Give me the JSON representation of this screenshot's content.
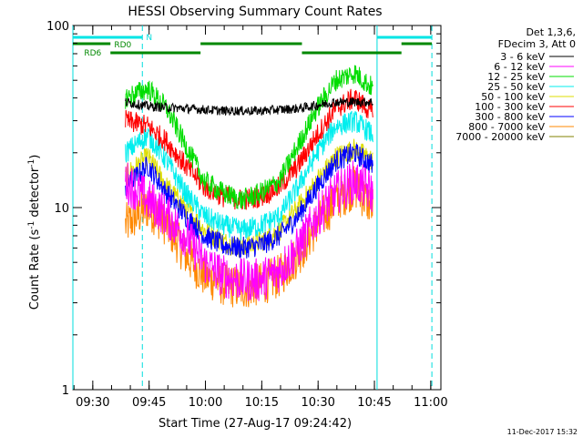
{
  "chart_data": {
    "type": "line",
    "title": "HESSI Observing Summary Count Rates",
    "xlabel": "Start Time (27-Aug-17 09:24:42)",
    "ylabel": "Count Rate (s⁻¹ detector⁻¹)",
    "ylabel_main": "Count Rate (s",
    "ylabel_sup1": "-1",
    "ylabel_mid": " detector",
    "ylabel_sup2": "-1",
    "ylabel_end": ")",
    "y_scale": "log",
    "ylim": [
      1,
      100
    ],
    "xlim_minutes": [
      0,
      98
    ],
    "x_ticks": [
      {
        "label": "09:30",
        "t": 5.3
      },
      {
        "label": "09:45",
        "t": 20.3
      },
      {
        "label": "10:00",
        "t": 35.3
      },
      {
        "label": "10:15",
        "t": 50.3
      },
      {
        "label": "10:30",
        "t": 65.3
      },
      {
        "label": "10:45",
        "t": 80.3
      },
      {
        "label": "11:00",
        "t": 95.3
      }
    ],
    "y_ticks": [
      {
        "label": "1",
        "v": 1
      },
      {
        "label": "10",
        "v": 10
      },
      {
        "label": "100",
        "v": 100
      }
    ],
    "legend_header": [
      "Det 1,3,6,",
      "FDecim 3, Att 0"
    ],
    "legend_position": "right",
    "series": [
      {
        "name": "3 - 6 keV",
        "color": "#000000",
        "t": [
          14,
          20,
          30,
          40,
          50,
          60,
          70,
          75,
          80
        ],
        "values": [
          38,
          36,
          35,
          34,
          34,
          35,
          38,
          38,
          38
        ]
      },
      {
        "name": "6 - 12 keV",
        "color": "#ff00ff",
        "t": [
          14,
          20,
          25,
          30,
          35,
          40,
          45,
          50,
          55,
          60,
          65,
          70,
          75,
          80
        ],
        "values": [
          14,
          11,
          9,
          7,
          5,
          4.2,
          4,
          4,
          4.5,
          6,
          9,
          12,
          14,
          12
        ]
      },
      {
        "name": "12 - 25 keV",
        "color": "#00dd00",
        "t": [
          14,
          20,
          25,
          30,
          35,
          40,
          45,
          50,
          55,
          60,
          65,
          70,
          75,
          80
        ],
        "values": [
          40,
          45,
          35,
          22,
          14,
          12,
          11,
          12,
          14,
          22,
          35,
          50,
          55,
          45
        ]
      },
      {
        "name": "25 - 50 keV",
        "color": "#00eeee",
        "t": [
          14,
          20,
          25,
          30,
          35,
          40,
          45,
          50,
          55,
          60,
          65,
          70,
          75,
          80
        ],
        "values": [
          20,
          25,
          18,
          12,
          9,
          8,
          7.5,
          8,
          9,
          13,
          20,
          28,
          30,
          25
        ]
      },
      {
        "name": "50 - 100 keV",
        "color": "#dddd00",
        "t": [
          14,
          20,
          25,
          30,
          35,
          40,
          45,
          50,
          55,
          60,
          65,
          70,
          75,
          80
        ],
        "values": [
          15,
          19,
          13,
          10,
          7.5,
          6.5,
          6,
          6.5,
          7.5,
          10,
          14,
          19,
          21,
          18
        ]
      },
      {
        "name": "100 - 300 keV",
        "color": "#ff0000",
        "t": [
          14,
          20,
          25,
          30,
          35,
          40,
          45,
          50,
          55,
          60,
          65,
          70,
          75,
          80
        ],
        "values": [
          30,
          28,
          23,
          17,
          13,
          11.5,
          11,
          11.5,
          13,
          17,
          25,
          35,
          40,
          33
        ]
      },
      {
        "name": "300 - 800 keV",
        "color": "#0000ff",
        "t": [
          14,
          20,
          25,
          30,
          35,
          40,
          45,
          50,
          55,
          60,
          65,
          70,
          75,
          80
        ],
        "values": [
          13,
          17,
          12,
          9,
          7,
          6.2,
          6,
          6.2,
          7,
          9,
          13,
          18,
          20,
          17
        ]
      },
      {
        "name": "800 - 7000 keV",
        "color": "#ff8800",
        "t": [
          14,
          20,
          25,
          30,
          35,
          40,
          45,
          50,
          55,
          60,
          65,
          70,
          75,
          80
        ],
        "values": [
          8,
          10,
          8,
          5.5,
          4.2,
          3.8,
          3.6,
          3.8,
          4.2,
          5.5,
          8,
          11,
          13,
          10
        ]
      },
      {
        "name": "7000 - 20000 keV",
        "color": "#808000",
        "t": [],
        "values": []
      }
    ],
    "cyan_vertical_lines_minutes": [
      0,
      81
    ],
    "cyan_dashed_vertical_lines_minutes": [
      18.5,
      95.6
    ],
    "annotations": [
      {
        "text": "N",
        "color": "#00dddd"
      },
      {
        "text": "RD0",
        "color": "#008800"
      },
      {
        "text": "RD6",
        "color": "#008800"
      }
    ],
    "footer_date": "11-Dec-2017 15:32"
  }
}
